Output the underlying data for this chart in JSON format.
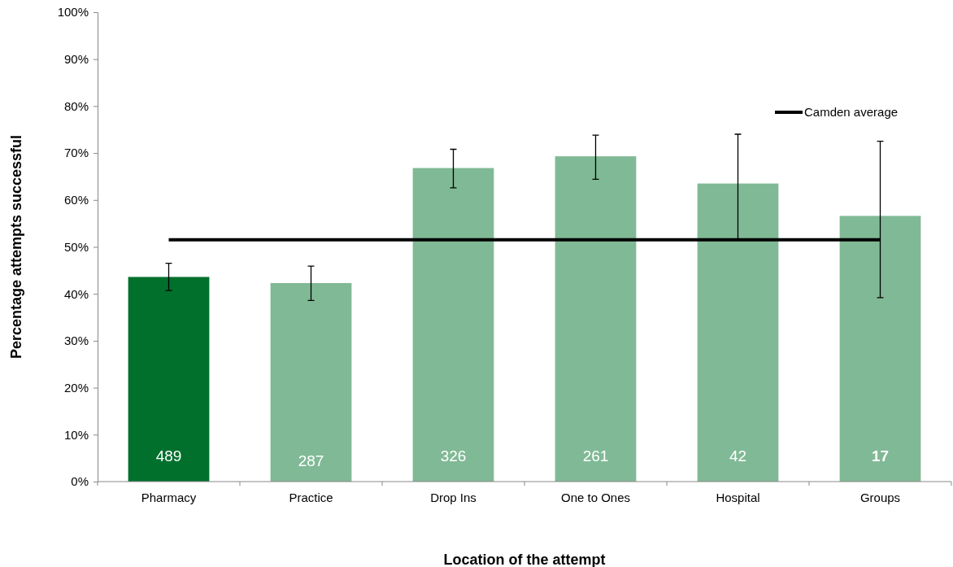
{
  "chart_data": {
    "type": "bar",
    "xlabel": "Location of the attempt",
    "ylabel": "Percentage attempts  successful",
    "categories": [
      "Pharmacy",
      "Practice",
      "Drop Ins",
      "One to Ones",
      "Hospital",
      "Groups"
    ],
    "values": [
      43.6,
      42.3,
      66.8,
      69.3,
      63.5,
      56.6
    ],
    "colors": [
      "#00702c",
      "#80b995",
      "#80b995",
      "#80b995",
      "#80b995",
      "#80b995"
    ],
    "errors": [
      [
        40.7,
        46.5
      ],
      [
        38.6,
        45.9
      ],
      [
        62.6,
        70.8
      ],
      [
        64.4,
        73.8
      ],
      [
        51.6,
        74.0
      ],
      [
        39.2,
        72.5
      ]
    ],
    "ylim": [
      0,
      100
    ],
    "yticks": [
      {
        "value": 0,
        "label": "0%"
      },
      {
        "value": 10,
        "label": "10%"
      },
      {
        "value": 20,
        "label": "20%"
      },
      {
        "value": 30,
        "label": "30%"
      },
      {
        "value": 40,
        "label": "40%"
      },
      {
        "value": 50,
        "label": "50%"
      },
      {
        "value": 60,
        "label": "60%"
      },
      {
        "value": 70,
        "label": "70%"
      },
      {
        "value": 80,
        "label": "80%"
      },
      {
        "value": 90,
        "label": "90%"
      },
      {
        "value": 100,
        "label": "100%"
      }
    ],
    "ref_lines": [
      {
        "axis": "y",
        "value": 51.5,
        "label": "Camden average",
        "color": "#000000"
      }
    ],
    "annotations": [
      "489",
      "287",
      "326",
      "261",
      "42",
      "17"
    ],
    "legend": "top right",
    "grid": false
  }
}
